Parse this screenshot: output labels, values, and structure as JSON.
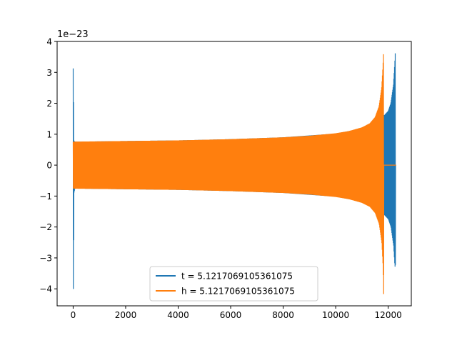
{
  "chart_data": {
    "type": "line",
    "title": "",
    "xlabel": "",
    "ylabel": "",
    "y_offset_label": "1e−23",
    "xlim": [
      -610,
      12880
    ],
    "ylim": [
      -4.55,
      4.0
    ],
    "x_ticks": [
      0,
      2000,
      4000,
      6000,
      8000,
      10000,
      12000
    ],
    "x_tick_labels": [
      "0",
      "2000",
      "4000",
      "6000",
      "8000",
      "10000",
      "12000"
    ],
    "y_ticks": [
      -4,
      -3,
      -2,
      -1,
      0,
      1,
      2,
      3,
      4
    ],
    "y_tick_labels": [
      "−4",
      "−3",
      "−2",
      "−1",
      "0",
      "1",
      "2",
      "3",
      "4"
    ],
    "grid": false,
    "legend_position": "bottom-center",
    "series": [
      {
        "name": "t = 5.1217069105361075",
        "color": "#1f77b4",
        "render": "oscillation_envelope",
        "envelope": {
          "x": [
            0,
            12,
            25,
            60,
            300,
            2000,
            4000,
            6000,
            8000,
            10000,
            11000,
            11500,
            11700,
            11850,
            11860,
            12000,
            12100,
            12200,
            12250,
            12270,
            12275,
            12300
          ],
          "upper": [
            3.25,
            2.5,
            0.8,
            0.76,
            0.76,
            0.78,
            0.8,
            0.84,
            0.9,
            1.02,
            1.18,
            1.4,
            1.6,
            1.62,
            1.62,
            1.75,
            2.0,
            2.6,
            3.3,
            3.65,
            0.0,
            0.0
          ],
          "lower": [
            -4.2,
            -3.0,
            -0.9,
            -0.76,
            -0.76,
            -0.78,
            -0.8,
            -0.84,
            -0.9,
            -1.02,
            -1.18,
            -1.4,
            -1.6,
            -1.62,
            -1.62,
            -1.75,
            -2.0,
            -2.6,
            -3.3,
            -3.22,
            0.0,
            0.0
          ]
        }
      },
      {
        "name": "h = 5.1217069105361075",
        "color": "#ff7f0e",
        "render": "oscillation_envelope",
        "envelope": {
          "x": [
            0,
            2000,
            4000,
            6000,
            8000,
            9000,
            10000,
            10500,
            11000,
            11300,
            11500,
            11650,
            11750,
            11800,
            11820,
            11830,
            12300
          ],
          "upper": [
            0.76,
            0.78,
            0.8,
            0.84,
            0.9,
            0.95,
            1.03,
            1.1,
            1.22,
            1.35,
            1.55,
            1.9,
            2.5,
            3.2,
            3.6,
            0.0,
            0.0
          ],
          "lower": [
            -0.76,
            -0.78,
            -0.8,
            -0.84,
            -0.9,
            -0.95,
            -1.03,
            -1.1,
            -1.22,
            -1.35,
            -1.55,
            -1.9,
            -2.5,
            -3.3,
            -4.2,
            0.0,
            0.0
          ]
        }
      }
    ]
  }
}
